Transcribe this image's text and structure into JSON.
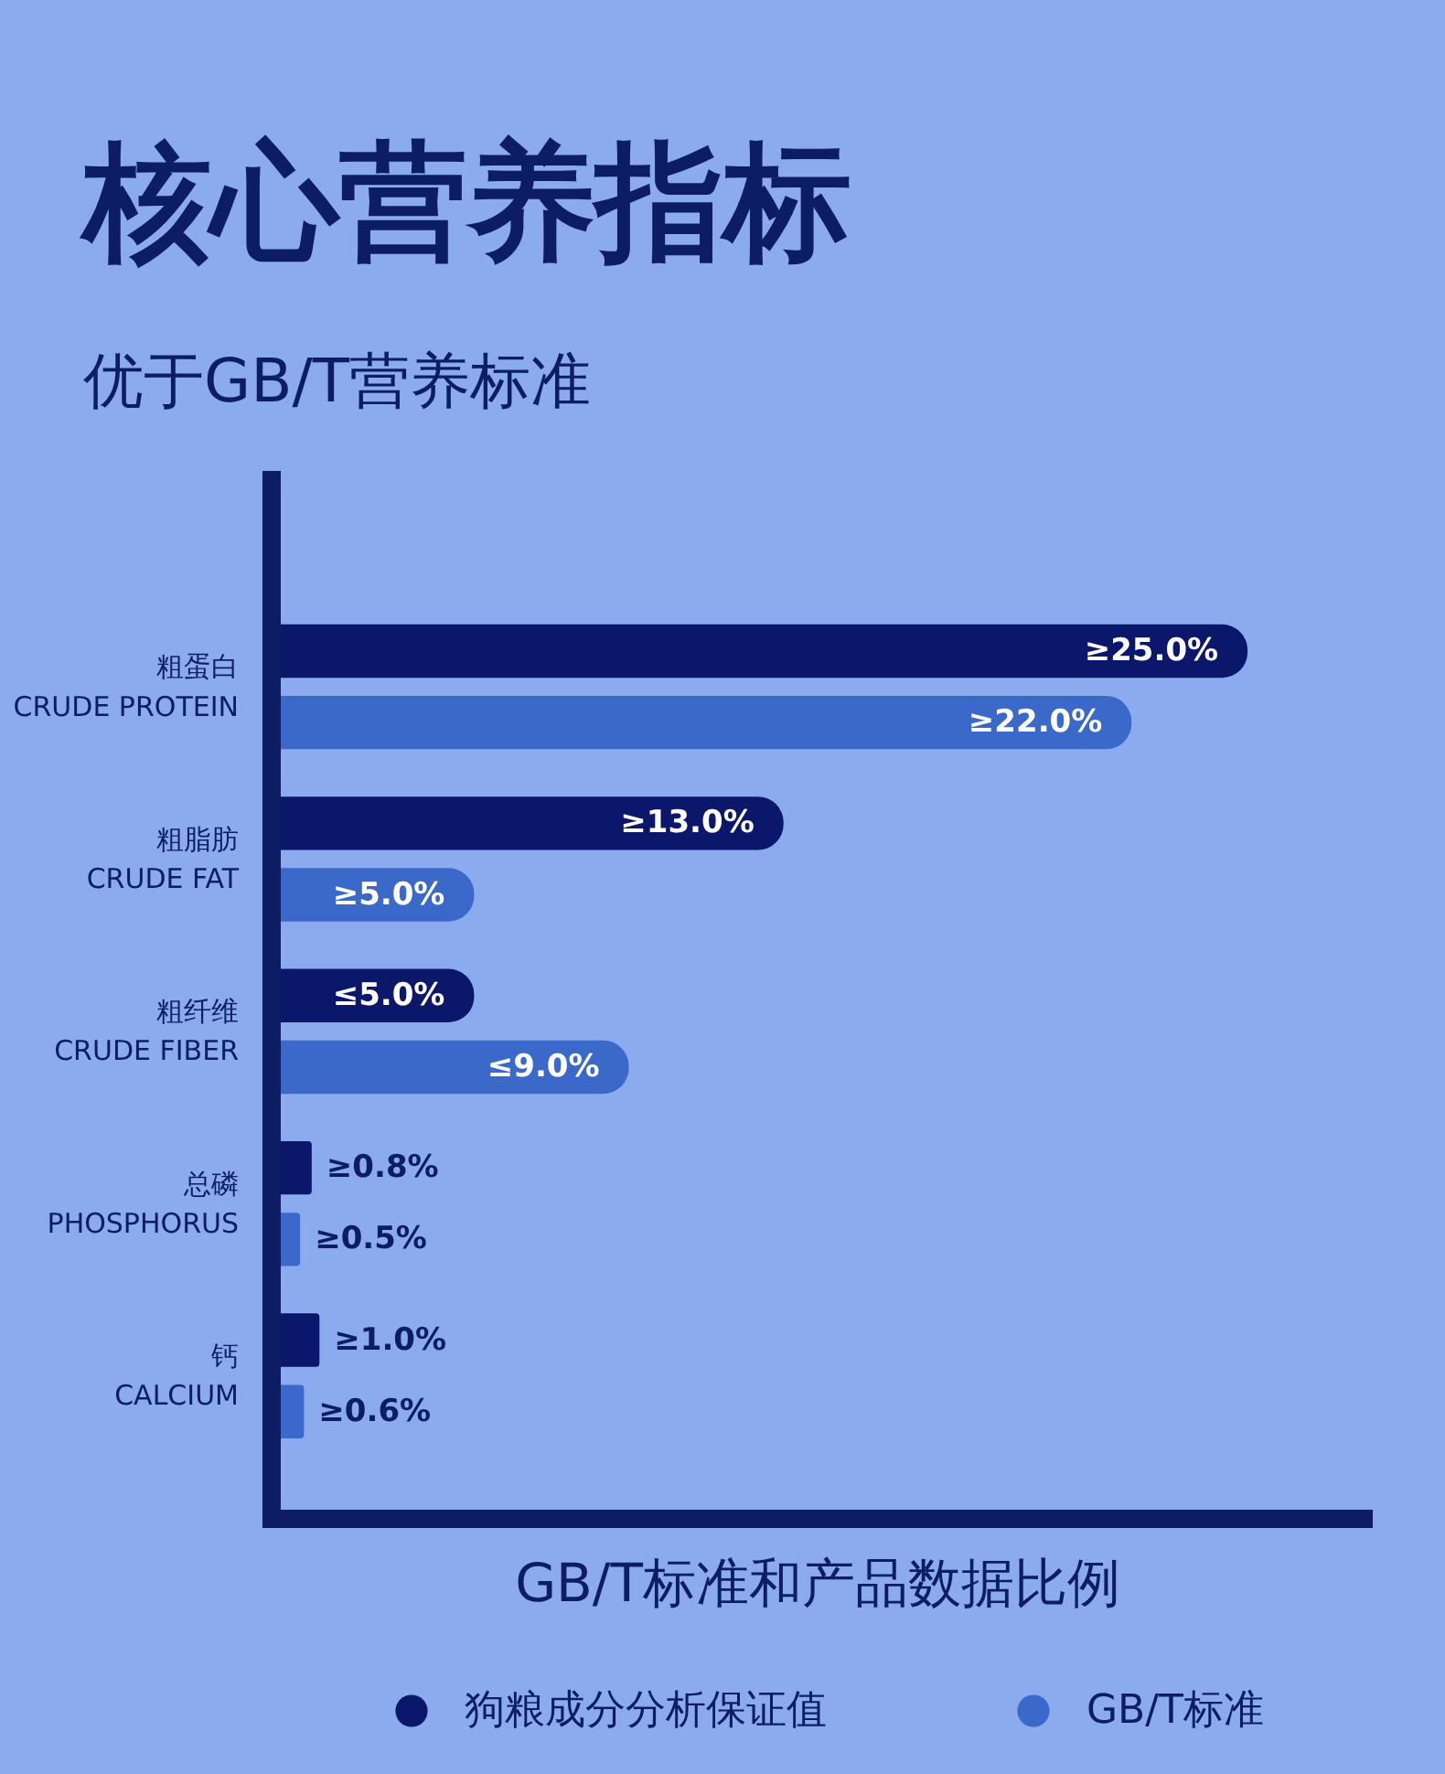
{
  "chart_data": {
    "type": "bar",
    "orientation": "horizontal",
    "title": "核心营养指标",
    "subtitle": "优于GB/T营养标准",
    "xlabel": "GB/T标准和产品数据比例",
    "categories": [
      "粗蛋白\nCRUDE PROTEIN",
      "粗脂肪\nCRUDE FAT",
      "粗纤维\nCRUDE FIBER",
      "总磷\nPHOSPHORUS",
      "钙\nCALCIUM"
    ],
    "series": [
      {
        "name": "狗粮成分分析保证值",
        "color": "#0a176b",
        "values": [
          25.0,
          13.0,
          5.0,
          0.8,
          1.0
        ],
        "value_labels": [
          "≥25.0%",
          "≥13.0%",
          "≤5.0%",
          "≥0.8%",
          "≥1.0%"
        ]
      },
      {
        "name": "GB/T标准",
        "color": "#3b69c9",
        "values": [
          22.0,
          5.0,
          9.0,
          0.5,
          0.6
        ],
        "value_labels": [
          "≥22.0%",
          "≥5.0%",
          "≤9.0%",
          "≥0.5%",
          "≥0.6%"
        ]
      }
    ],
    "legend": "bottom",
    "tick_labels": "y"
  }
}
